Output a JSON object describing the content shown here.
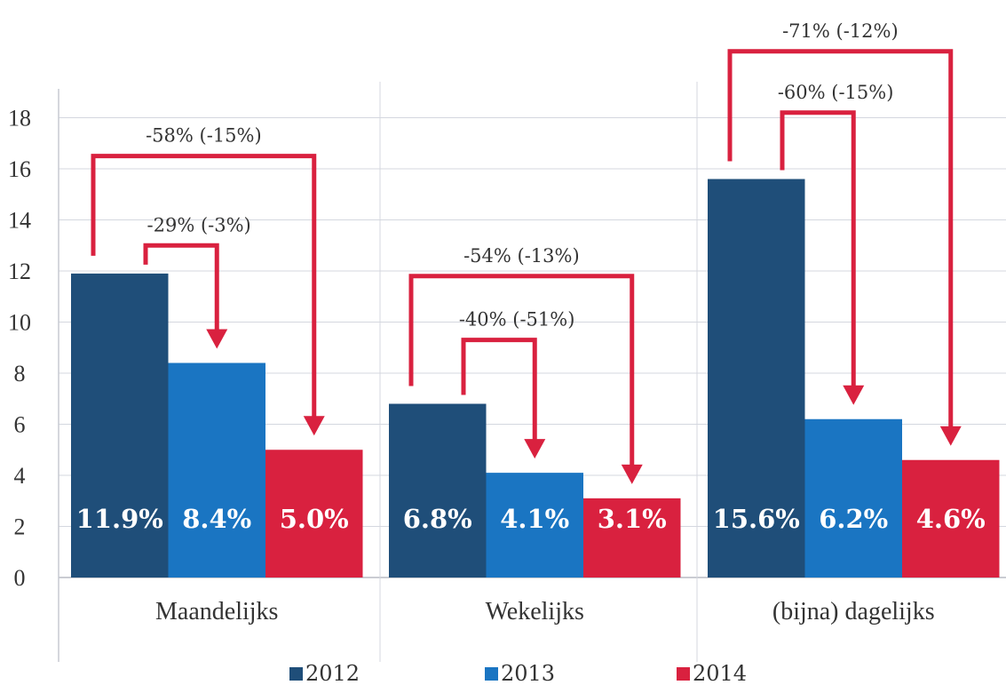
{
  "chart_data": {
    "type": "bar",
    "categories": [
      "Maandelijks",
      "Wekelijks",
      "(bijna) dagelijks"
    ],
    "series": [
      {
        "name": "2012",
        "color": "#1f4e79",
        "values": [
          11.9,
          6.8,
          15.6
        ],
        "labels": [
          "11.9%",
          "6.8%",
          "15.6%"
        ]
      },
      {
        "name": "2013",
        "color": "#1a75c2",
        "values": [
          8.4,
          4.1,
          6.2
        ],
        "labels": [
          "8.4%",
          "4.1%",
          "6.2%"
        ]
      },
      {
        "name": "2014",
        "color": "#d9213f",
        "values": [
          5.0,
          3.1,
          4.6
        ],
        "labels": [
          "5.0%",
          "3.1%",
          "4.6%"
        ]
      }
    ],
    "ylim": [
      0,
      18
    ],
    "yticks": [
      "0",
      "2",
      "4",
      "6",
      "8",
      "10",
      "12",
      "14",
      "16",
      "18"
    ],
    "grid": true,
    "legend_position": "bottom",
    "annotations": [
      {
        "category": 0,
        "from_series": 1,
        "to_series": 2,
        "text": "-58% (-15%)",
        "level": 16.5
      },
      {
        "category": 0,
        "from_series": 1,
        "to_series": 1,
        "text": "-29% (-3%)",
        "level": 13.0
      },
      {
        "category": 1,
        "from_series": 1,
        "to_series": 2,
        "text": "-54% (-13%)",
        "level": 11.8
      },
      {
        "category": 1,
        "from_series": 1,
        "to_series": 1,
        "text": "-40% (-51%)",
        "level": 9.3
      },
      {
        "category": 2,
        "from_series": 1,
        "to_series": 2,
        "text": "-71% (-12%)",
        "level": 20.6
      },
      {
        "category": 2,
        "from_series": 1,
        "to_series": 1,
        "text": "-60% (-15%)",
        "level": 18.2
      }
    ],
    "annotation_color": "#d9213f"
  }
}
